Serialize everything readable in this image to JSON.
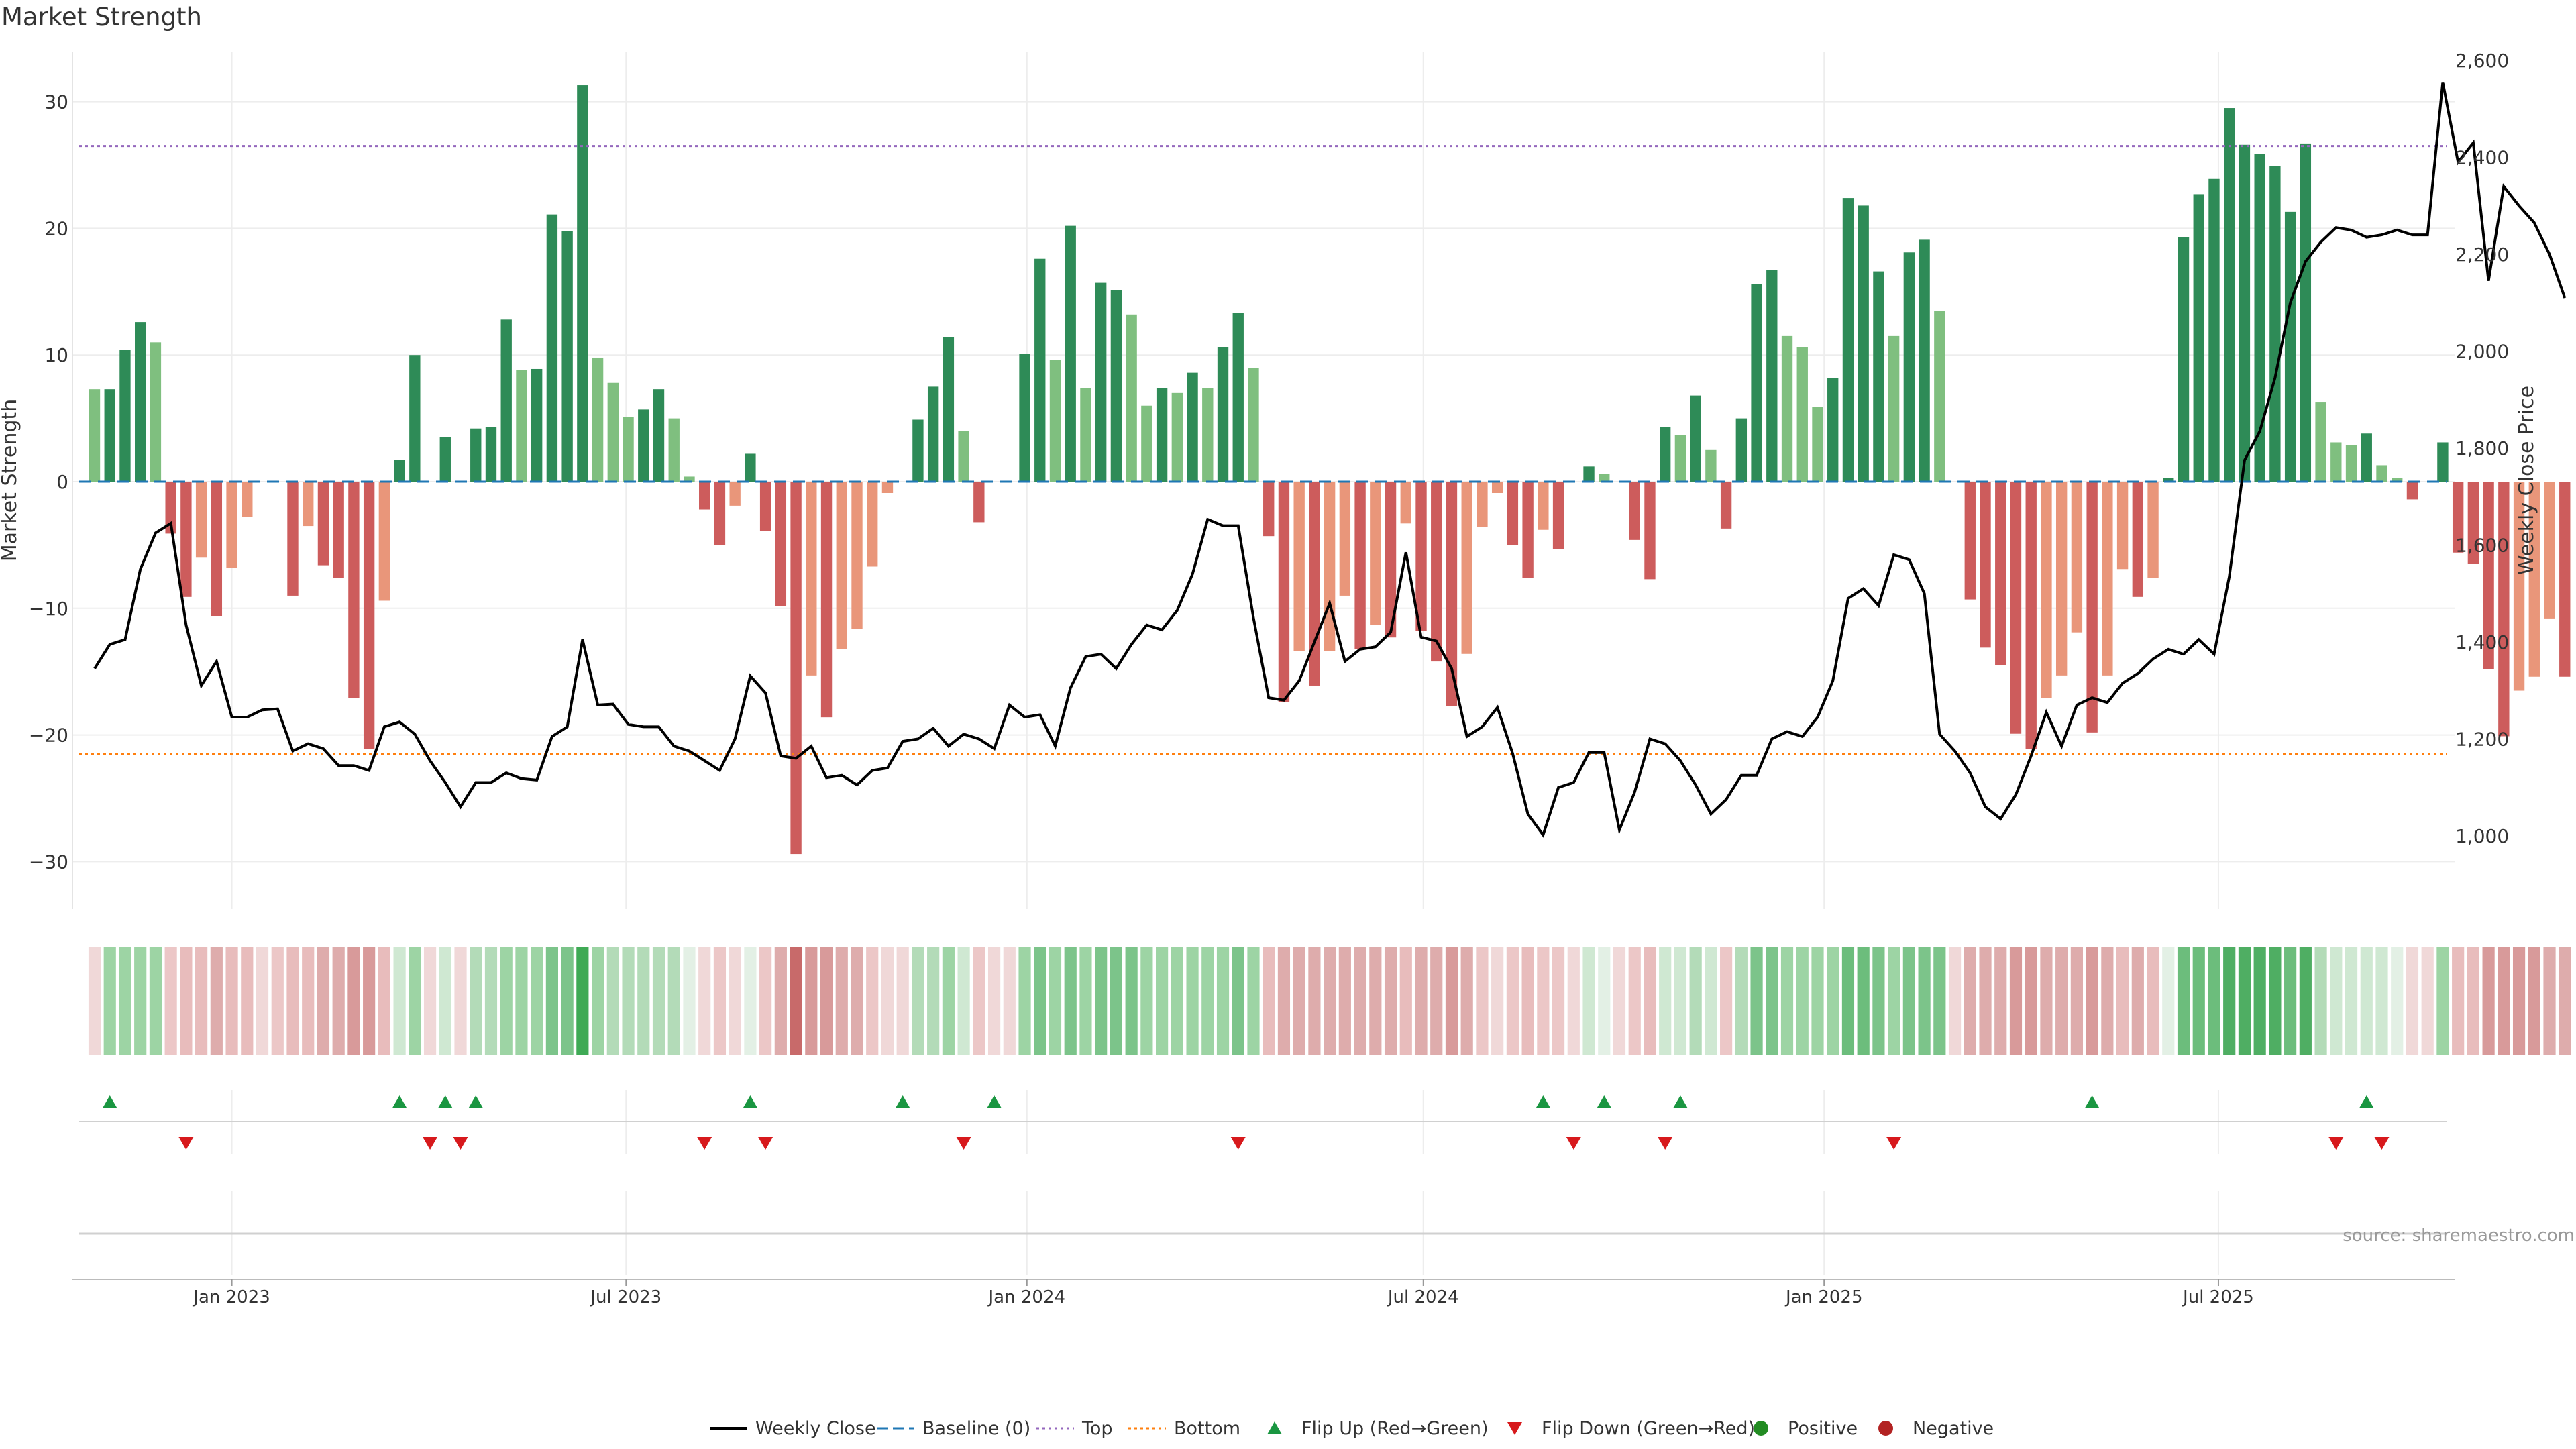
{
  "chart_data": {
    "type": "bar",
    "title": "Market Strength",
    "y_left_label": "Market Strength",
    "y_right_label": "Weekly Close Price",
    "y_left_ticks": [
      30,
      20,
      10,
      0,
      -10,
      -20,
      -30
    ],
    "y_left_tick_labels": [
      "30",
      "20",
      "10",
      "0",
      "−10",
      "−20",
      "−30"
    ],
    "y_right_ticks": [
      2600,
      2400,
      2200,
      2000,
      1800,
      1600,
      1400,
      1200,
      1000
    ],
    "y_right_tick_labels": [
      "2,600",
      "2,400",
      "2,200",
      "2,000",
      "1,800",
      "1,600",
      "1,400",
      "1,200",
      "1,000"
    ],
    "ylim_left": [
      -33.5,
      33.5
    ],
    "ylim_right": [
      920,
      2600
    ],
    "x_ticks": [
      {
        "date": "2023-01-01",
        "label": "Jan 2023"
      },
      {
        "date": "2023-07-01",
        "label": "Jul 2023"
      },
      {
        "date": "2024-01-01",
        "label": "Jan 2024"
      },
      {
        "date": "2024-07-01",
        "label": "Jul 2024"
      },
      {
        "date": "2025-01-01",
        "label": "Jan 2025"
      },
      {
        "date": "2025-07-01",
        "label": "Jul 2025"
      }
    ],
    "top_threshold": 26.5,
    "bottom_threshold": -21.5,
    "baseline": 0,
    "week_start": "2022-10-30",
    "strength": [
      7.3,
      7.3,
      10.4,
      12.6,
      11.0,
      -4.1,
      -9.1,
      -6.0,
      -10.6,
      -6.8,
      -2.8,
      0,
      0,
      -9.0,
      -3.5,
      -6.6,
      -7.6,
      -17.1,
      -21.1,
      -9.4,
      1.7,
      10.0,
      0,
      3.5,
      0,
      4.2,
      4.3,
      12.8,
      8.8,
      8.9,
      21.1,
      19.8,
      31.3,
      9.8,
      7.8,
      5.1,
      5.7,
      7.3,
      5.0,
      0.4,
      -2.2,
      -5.0,
      -1.9,
      2.2,
      -3.9,
      -9.8,
      -29.4,
      -15.3,
      -18.6,
      -13.2,
      -11.6,
      -6.7,
      -0.9,
      0,
      4.9,
      7.5,
      11.4,
      4.0,
      -3.2,
      0,
      0,
      10.1,
      17.6,
      9.6,
      20.2,
      7.4,
      15.7,
      15.1,
      13.2,
      6.0,
      7.4,
      7.0,
      8.6,
      7.4,
      10.6,
      13.3,
      9.0,
      -4.3,
      -17.4,
      -13.4,
      -16.1,
      -13.4,
      -9.0,
      -13.2,
      -11.3,
      -12.3,
      -3.3,
      -11.8,
      -14.2,
      -17.7,
      -13.6,
      -3.6,
      -0.9,
      -5.0,
      -7.6,
      -3.8,
      -5.3,
      0,
      1.2,
      0.6,
      0,
      -4.6,
      -7.7,
      4.3,
      3.7,
      6.8,
      2.5,
      -3.7,
      5.0,
      15.6,
      16.7,
      11.5,
      10.6,
      5.9,
      8.2,
      22.4,
      21.8,
      16.6,
      11.5,
      18.1,
      19.1,
      13.5,
      0,
      -9.3,
      -13.1,
      -14.5,
      -19.9,
      -21.1,
      -17.1,
      -15.3,
      -11.9,
      -19.8,
      -15.3,
      -6.9,
      -9.1,
      -7.6,
      0.3,
      19.3,
      22.7,
      23.9,
      29.5,
      26.6,
      25.9,
      24.9,
      21.3,
      26.7,
      6.3,
      3.1,
      2.9,
      3.8,
      1.3,
      0.3,
      -1.4,
      0,
      3.1,
      -5.6,
      -6.5,
      -14.8,
      -20.1,
      -16.5,
      -15.4,
      -10.8,
      -15.4
    ],
    "close": [
      1345,
      1395,
      1405,
      1550,
      1625,
      1645,
      1435,
      1310,
      1360,
      1245,
      1245,
      1260,
      1262,
      1175,
      1190,
      1180,
      1145,
      1145,
      1135,
      1225,
      1235,
      1210,
      1155,
      1110,
      1060,
      1110,
      1110,
      1130,
      1118,
      1115,
      1205,
      1225,
      1405,
      1270,
      1272,
      1230,
      1225,
      1225,
      1185,
      1175,
      1155,
      1135,
      1200,
      1330,
      1295,
      1165,
      1160,
      1185,
      1120,
      1125,
      1105,
      1135,
      1140,
      1195,
      1200,
      1222,
      1185,
      1210,
      1200,
      1180,
      1270,
      1245,
      1250,
      1185,
      1305,
      1370,
      1375,
      1345,
      1395,
      1435,
      1425,
      1465,
      1540,
      1653,
      1640,
      1640,
      1450,
      1285,
      1280,
      1320,
      1400,
      1480,
      1360,
      1385,
      1390,
      1420,
      1585,
      1410,
      1402,
      1345,
      1205,
      1225,
      1265,
      1170,
      1045,
      1002,
      1100,
      1110,
      1172,
      1172,
      1012,
      1090,
      1200,
      1190,
      1155,
      1105,
      1045,
      1075,
      1125,
      1125,
      1200,
      1215,
      1205,
      1245,
      1320,
      1490,
      1510,
      1475,
      1580,
      1570,
      1500,
      1210,
      1175,
      1130,
      1060,
      1035,
      1085,
      1165,
      1255,
      1185,
      1270,
      1285,
      1275,
      1315,
      1335,
      1365,
      1385,
      1375,
      1405,
      1375,
      1535,
      1775,
      1835,
      1945,
      2100,
      2185,
      2225,
      2255,
      2250,
      2235,
      2240,
      2250,
      2240,
      2240,
      2555,
      2390,
      2430,
      2145,
      2340,
      2300,
      2265,
      2200,
      2110
    ],
    "heat_colors": [
      "#f0d8d8",
      "#9dd4a4",
      "#9dd4a4",
      "#9dd4a4",
      "#9dd4a4",
      "#ecc7c7",
      "#e8bcbc",
      "#e8bcbc",
      "#deacac",
      "#e8bcbc",
      "#e8bcbc",
      "#f0d8d8",
      "#ecc7c7",
      "#e8bcbc",
      "#e8bcbc",
      "#deacac",
      "#deacac",
      "#d89a9a",
      "#d89a9a",
      "#e8bcbc",
      "#cfe8d2",
      "#9dd4a4",
      "#f0d8d8",
      "#cfe8d2",
      "#f0d8d8",
      "#b3dbb8",
      "#b3dbb8",
      "#9dd4a4",
      "#9dd4a4",
      "#9dd4a4",
      "#7cc48a",
      "#7cc48a",
      "#3faa55",
      "#9dd4a4",
      "#b3dbb8",
      "#b3dbb8",
      "#b3dbb8",
      "#b3dbb8",
      "#b3dbb8",
      "#e3f0e5",
      "#f0d8d8",
      "#ecc7c7",
      "#f0d8d8",
      "#e3f0e5",
      "#ecc7c7",
      "#deacac",
      "#c86a6a",
      "#d89a9a",
      "#d89a9a",
      "#deacac",
      "#deacac",
      "#ecc7c7",
      "#f0d8d8",
      "#f0d8d8",
      "#b3dbb8",
      "#b3dbb8",
      "#9dd4a4",
      "#cfe8d2",
      "#ecc7c7",
      "#f0d8d8",
      "#f0d8d8",
      "#9dd4a4",
      "#7cc48a",
      "#9dd4a4",
      "#7cc48a",
      "#9dd4a4",
      "#7cc48a",
      "#7cc48a",
      "#7cc48a",
      "#9dd4a4",
      "#9dd4a4",
      "#9dd4a4",
      "#9dd4a4",
      "#9dd4a4",
      "#9dd4a4",
      "#7cc48a",
      "#9dd4a4",
      "#e8bcbc",
      "#deacac",
      "#deacac",
      "#deacac",
      "#deacac",
      "#deacac",
      "#deacac",
      "#deacac",
      "#deacac",
      "#e8bcbc",
      "#deacac",
      "#deacac",
      "#d89a9a",
      "#deacac",
      "#ecc7c7",
      "#f0d8d8",
      "#ecc7c7",
      "#e8bcbc",
      "#ecc7c7",
      "#ecc7c7",
      "#f0d8d8",
      "#cfe8d2",
      "#e3f0e5",
      "#f0d8d8",
      "#ecc7c7",
      "#e8bcbc",
      "#cfe8d2",
      "#cfe8d2",
      "#b3dbb8",
      "#cfe8d2",
      "#ecc7c7",
      "#b3dbb8",
      "#7cc48a",
      "#7cc48a",
      "#9dd4a4",
      "#9dd4a4",
      "#9dd4a4",
      "#9dd4a4",
      "#6cbd7c",
      "#6cbd7c",
      "#7cc48a",
      "#9dd4a4",
      "#7cc48a",
      "#7cc48a",
      "#7cc48a",
      "#f0d8d8",
      "#deacac",
      "#deacac",
      "#deacac",
      "#d89a9a",
      "#d89a9a",
      "#deacac",
      "#deacac",
      "#deacac",
      "#d89a9a",
      "#deacac",
      "#e8bcbc",
      "#deacac",
      "#e8bcbc",
      "#e3f0e5",
      "#6cbd7c",
      "#6cbd7c",
      "#6cbd7c",
      "#4fae63",
      "#4fae63",
      "#4fae63",
      "#4fae63",
      "#6cbd7c",
      "#4fae63",
      "#b3dbb8",
      "#cfe8d2",
      "#cfe8d2",
      "#cfe8d2",
      "#cfe8d2",
      "#e3f0e5",
      "#f0d8d8",
      "#f0d8d8",
      "#9dd4a4",
      "#e8bcbc",
      "#e8bcbc",
      "#d89a9a",
      "#d89a9a",
      "#d89a9a",
      "#d89a9a",
      "#deacac",
      "#deacac"
    ],
    "flip_up_weeks": [
      1,
      20,
      23,
      25,
      43,
      53,
      59,
      95,
      99,
      104,
      131,
      149
    ],
    "flip_down_weeks": [
      6,
      22,
      24,
      40,
      44,
      57,
      75,
      97,
      103,
      118,
      147,
      150
    ],
    "colors": {
      "strong_green": "#2e8b57",
      "light_green": "#7fbf7f",
      "strong_red": "#cd5c5c",
      "light_red": "#e9967a",
      "price_line": "#000000",
      "baseline": "#1f77b4",
      "top_line": "#9467bd",
      "bottom_line": "#ff7f0e",
      "flip_up": "#1a9641",
      "flip_down": "#d7191c",
      "positive": "#228b22",
      "negative": "#b22222"
    },
    "legend": [
      {
        "label": "Weekly Close",
        "symbol": "line-solid",
        "color": "#000000"
      },
      {
        "label": "Baseline (0)",
        "symbol": "line-dashed",
        "color": "#1f77b4"
      },
      {
        "label": "Top",
        "symbol": "line-dotted",
        "color": "#9467bd"
      },
      {
        "label": "Bottom",
        "symbol": "line-dotted",
        "color": "#ff7f0e"
      },
      {
        "label": "Flip Up (Red→Green)",
        "symbol": "triangle-up",
        "color": "#1a9641"
      },
      {
        "label": "Flip Down (Green→Red)",
        "symbol": "triangle-down",
        "color": "#d7191c"
      },
      {
        "label": "Positive",
        "symbol": "circle",
        "color": "#228b22"
      },
      {
        "label": "Negative",
        "symbol": "circle",
        "color": "#b22222"
      }
    ],
    "legend_position": "bottom-center",
    "grid": true
  },
  "source_label": "source: sharemaestro.com"
}
